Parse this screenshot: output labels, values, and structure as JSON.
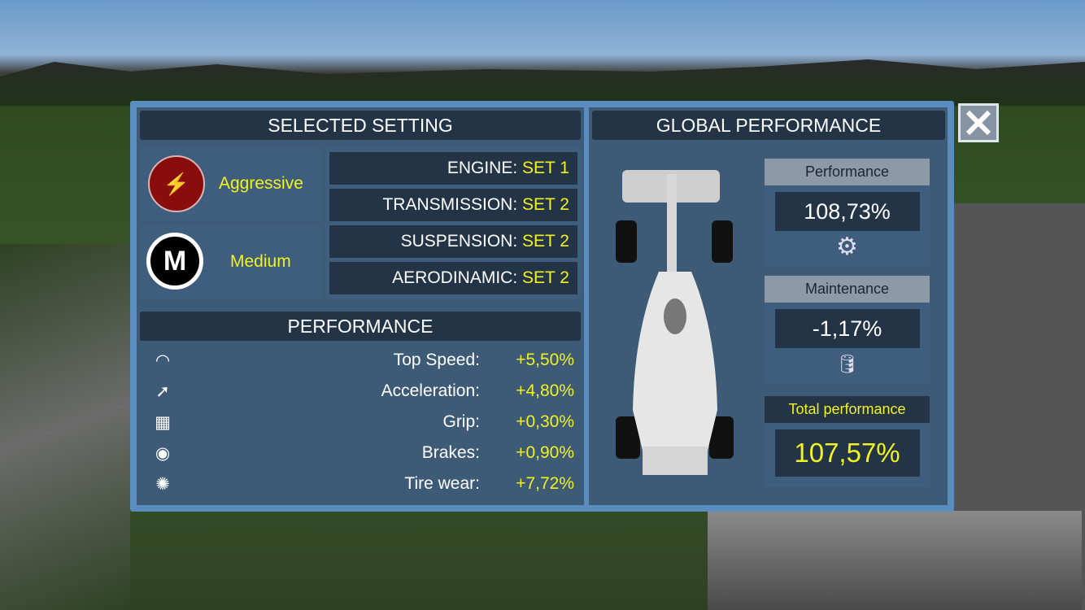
{
  "selected_setting": {
    "title": "SELECTED SETTING",
    "modes": [
      {
        "label": "Aggressive",
        "icon": "engine-bolts-icon"
      },
      {
        "label": "Medium",
        "icon": "tire-medium-icon"
      }
    ],
    "sets": [
      {
        "label": "ENGINE:",
        "value": "SET 1"
      },
      {
        "label": "TRANSMISSION:",
        "value": "SET 2"
      },
      {
        "label": "SUSPENSION:",
        "value": "SET 2"
      },
      {
        "label": "AERODINAMIC:",
        "value": "SET 2"
      }
    ]
  },
  "performance": {
    "title": "PERFORMANCE",
    "rows": [
      {
        "label": "Top Speed:",
        "value": "+5,50%",
        "icon": "speedometer-icon"
      },
      {
        "label": "Acceleration:",
        "value": "+4,80%",
        "icon": "acceleration-gauge-icon"
      },
      {
        "label": "Grip:",
        "value": "+0,30%",
        "icon": "tire-tread-icon"
      },
      {
        "label": "Brakes:",
        "value": "+0,90%",
        "icon": "brake-stop-icon"
      },
      {
        "label": "Tire wear:",
        "value": "+7,72%",
        "icon": "wheel-icon"
      }
    ]
  },
  "global": {
    "title": "GLOBAL PERFORMANCE",
    "performance": {
      "label": "Performance",
      "value": "108,73%",
      "icon": "gear-icon"
    },
    "maintenance": {
      "label": "Maintenance",
      "value": "-1,17%",
      "icon": "oil-can-icon"
    },
    "total": {
      "label": "Total performance",
      "value": "107,57%"
    }
  },
  "colors": {
    "accent": "#f2f21e",
    "panel": "#3d5a77",
    "header": "#233447",
    "border": "#5a8cc0"
  }
}
